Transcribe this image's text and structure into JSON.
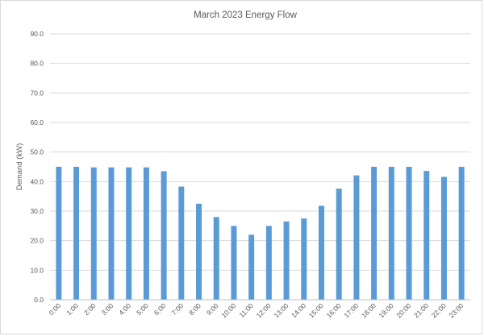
{
  "chart_data": {
    "type": "bar",
    "title": "March 2023 Energy Flow",
    "xlabel": "",
    "ylabel": "Demand (kW)",
    "ylim": [
      0,
      90
    ],
    "y_ticks": [
      "0.0",
      "10.0",
      "20.0",
      "30.0",
      "40.0",
      "50.0",
      "60.0",
      "70.0",
      "80.0",
      "90.0"
    ],
    "categories": [
      "0:00",
      "1:00",
      "2:00",
      "3:00",
      "4:00",
      "5:00",
      "6:00",
      "7:00",
      "8:00",
      "9:00",
      "10:00",
      "11:00",
      "12:00",
      "13:00",
      "14:00",
      "15:00",
      "16:00",
      "17:00",
      "18:00",
      "19:00",
      "20:00",
      "21:00",
      "22:00",
      "23:00"
    ],
    "values": [
      45.0,
      45.0,
      44.8,
      44.8,
      44.8,
      44.8,
      43.5,
      38.3,
      32.5,
      28.0,
      25.0,
      22.0,
      25.0,
      26.5,
      27.5,
      31.8,
      37.6,
      42.1,
      45.0,
      45.0,
      45.0,
      43.6,
      41.6,
      45.0
    ],
    "grid": true,
    "legend": "none",
    "bar_color": "#5b9bd5"
  }
}
